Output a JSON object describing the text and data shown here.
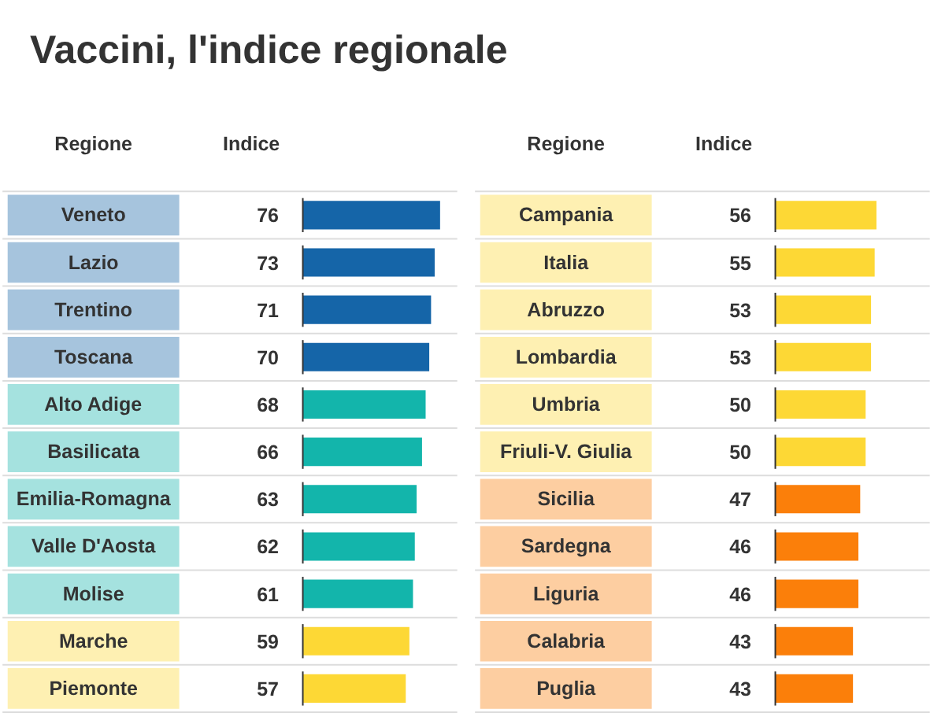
{
  "chart_data": [
    {
      "type": "bar",
      "orientation": "horizontal",
      "title": "Vaccini, l'indice regionale",
      "annotations": [
        "Regione",
        "Indice"
      ],
      "data_labels": true,
      "grid": false,
      "categories": [
        "Veneto",
        "Lazio",
        "Trentino",
        "Toscana",
        "Alto Adige",
        "Basilicata",
        "Emilia-Romagna",
        "Valle D'Aosta",
        "Molise",
        "Marche",
        "Piemonte"
      ],
      "values": [
        76,
        73,
        71,
        70,
        68,
        66,
        63,
        62,
        61,
        59,
        57
      ],
      "colors": [
        "#1565a8",
        "#1565a8",
        "#1565a8",
        "#1565a8",
        "#13b5ab",
        "#13b5ab",
        "#13b5ab",
        "#13b5ab",
        "#13b5ab",
        "#fdd835",
        "#fdd835"
      ]
    },
    {
      "type": "bar",
      "orientation": "horizontal",
      "annotations": [
        "Regione",
        "Indice"
      ],
      "data_labels": true,
      "grid": false,
      "categories": [
        "Campania",
        "Italia",
        "Abruzzo",
        "Lombardia",
        "Umbria",
        "Friuli-V. Giulia",
        "Sicilia",
        "Sardegna",
        "Liguria",
        "Calabria",
        "Puglia"
      ],
      "values": [
        56,
        55,
        53,
        53,
        50,
        50,
        47,
        46,
        46,
        43,
        43
      ],
      "colors": [
        "#fdd835",
        "#fdd835",
        "#fdd835",
        "#fdd835",
        "#fdd835",
        "#fdd835",
        "#fb7f0a",
        "#fb7f0a",
        "#fb7f0a",
        "#fb7f0a",
        "#fb7f0a"
      ]
    }
  ]
}
